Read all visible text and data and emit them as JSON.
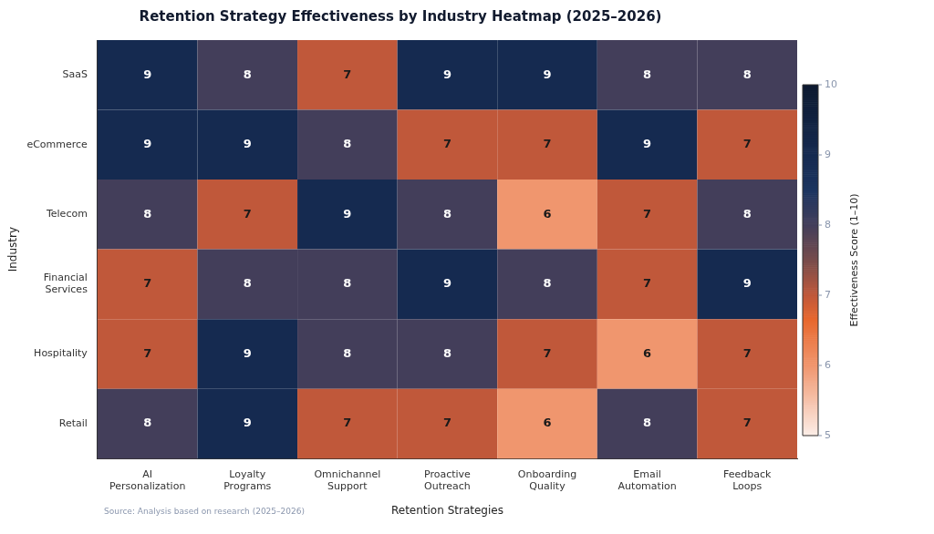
{
  "chart_data": {
    "type": "heatmap",
    "title": "Retention Strategy Effectiveness by Industry Heatmap (2025–2026)",
    "xlabel": "Retention Strategies",
    "ylabel": "Industry",
    "clabel": "Effectiveness Score (1–10)",
    "categories": [
      "AI Personalization",
      "Loyalty Programs",
      "Omnichannel Support",
      "Proactive Outreach",
      "Onboarding Quality",
      "Email Automation",
      "Feedback Loops"
    ],
    "y_categories": [
      "SaaS",
      "eCommerce",
      "Telecom",
      "Financial Services",
      "Hospitality",
      "Retail"
    ],
    "cells": [
      [
        9,
        8,
        7,
        9,
        9,
        8,
        8
      ],
      [
        9,
        9,
        8,
        7,
        7,
        9,
        7
      ],
      [
        8,
        7,
        9,
        8,
        6,
        7,
        8
      ],
      [
        7,
        8,
        8,
        9,
        8,
        7,
        9
      ],
      [
        7,
        9,
        8,
        8,
        7,
        6,
        7
      ],
      [
        8,
        9,
        7,
        7,
        6,
        8,
        7
      ]
    ],
    "data_labels": true,
    "clim": [
      5,
      10
    ],
    "cticks": [
      5,
      6,
      7,
      8,
      9,
      10
    ],
    "annotations": [
      "Source: Analysis based on research (2025–2026)"
    ]
  }
}
